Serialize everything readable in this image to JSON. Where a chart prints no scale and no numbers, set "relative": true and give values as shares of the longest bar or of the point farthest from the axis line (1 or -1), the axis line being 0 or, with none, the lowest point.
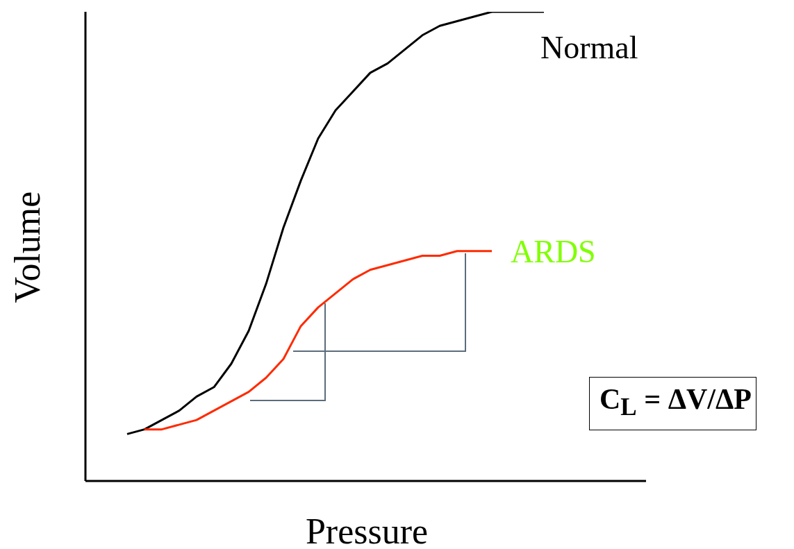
{
  "chart_data": {
    "type": "line",
    "relative": true,
    "xlabel": "Pressure",
    "ylabel": "Volume",
    "categories": [
      null,
      null,
      null,
      null,
      null,
      null,
      null,
      null,
      null,
      null,
      null,
      null,
      null,
      null,
      null,
      null,
      null,
      null,
      null,
      null,
      null,
      null,
      null,
      null,
      null,
      null,
      null,
      null,
      null,
      null,
      null,
      null
    ],
    "series": [
      {
        "name": "Normal",
        "color": "#000000",
        "values": [
          null,
          null,
          0.1,
          0.11,
          0.13,
          0.15,
          0.18,
          0.2,
          0.25,
          0.32,
          0.42,
          0.54,
          0.64,
          0.73,
          0.79,
          0.83,
          0.87,
          0.89,
          0.92,
          0.95,
          0.97,
          0.98,
          0.99,
          1,
          1,
          1,
          1,
          null,
          null,
          null,
          null,
          null
        ]
      },
      {
        "name": "ARDS",
        "color": "#ff2a00",
        "values": [
          null,
          null,
          null,
          0.11,
          0.11,
          0.12,
          0.13,
          0.15,
          0.17,
          0.19,
          0.22,
          0.26,
          0.33,
          0.37,
          0.4,
          0.43,
          0.45,
          0.46,
          0.47,
          0.48,
          0.48,
          0.49,
          0.49,
          0.49,
          null,
          null,
          null,
          null,
          null,
          null,
          null,
          null
        ]
      }
    ],
    "annotations": [
      "C$_{L}$ = ΔV/ΔP"
    ]
  }
}
